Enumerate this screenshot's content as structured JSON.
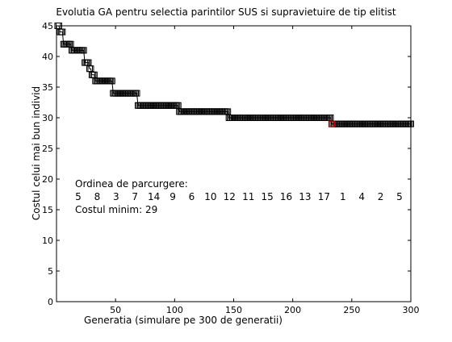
{
  "chart_data": {
    "type": "line",
    "title": "Evolutia GA pentru selectia parintilor SUS si supravietuire de tip elitist",
    "xlabel": "Generatia (simulare pe 300 de generatii)",
    "ylabel": "Costul celui mai bun individ",
    "xlim": [
      0,
      300
    ],
    "ylim": [
      0,
      45
    ],
    "xticks": [
      50,
      100,
      150,
      200,
      250,
      300
    ],
    "yticks": [
      0,
      5,
      10,
      15,
      20,
      25,
      30,
      35,
      40,
      45
    ],
    "grid": false,
    "marker": "square",
    "line_color": "#000000",
    "final_marker_color": "#cc0000",
    "steps": [
      {
        "x_start": 1,
        "x_end": 2,
        "y": 45
      },
      {
        "x_start": 3,
        "x_end": 5,
        "y": 44
      },
      {
        "x_start": 6,
        "x_end": 12,
        "y": 42
      },
      {
        "x_start": 13,
        "x_end": 23,
        "y": 41
      },
      {
        "x_start": 24,
        "x_end": 27,
        "y": 39
      },
      {
        "x_start": 28,
        "x_end": 29,
        "y": 38
      },
      {
        "x_start": 30,
        "x_end": 32,
        "y": 37
      },
      {
        "x_start": 33,
        "x_end": 47,
        "y": 36
      },
      {
        "x_start": 48,
        "x_end": 68,
        "y": 34
      },
      {
        "x_start": 69,
        "x_end": 103,
        "y": 32
      },
      {
        "x_start": 104,
        "x_end": 145,
        "y": 31
      },
      {
        "x_start": 146,
        "x_end": 232,
        "y": 30
      },
      {
        "x_start": 233,
        "x_end": 300,
        "y": 29
      }
    ],
    "final_point": {
      "x": 233,
      "y": 29
    },
    "annotations": {
      "order_label": "Ordinea de parcurgere:",
      "order": [
        "5",
        "8",
        "3",
        "7",
        "14",
        "9",
        "6",
        "10",
        "12",
        "11",
        "15",
        "16",
        "13",
        "17",
        "1",
        "4",
        "2",
        "5"
      ],
      "min_cost_label": "Costul minim: 29"
    }
  }
}
